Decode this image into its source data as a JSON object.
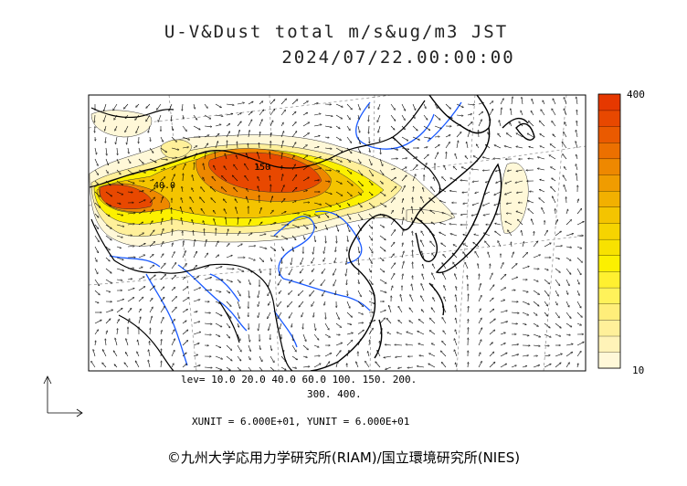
{
  "title": {
    "line1": "U-V&Dust total m/s&ug/m3 JST",
    "line2": "2024/07/22.00:00:00"
  },
  "colorbar": {
    "max_label": "400",
    "min_label": "10",
    "colors": [
      "#fff8d8",
      "#fff3b8",
      "#fff09a",
      "#ffee7a",
      "#fff25a",
      "#fff030",
      "#fcf000",
      "#f8e200",
      "#f6d400",
      "#f4c400",
      "#f2b000",
      "#f09c00",
      "#ee8800",
      "#ec7000",
      "#ea5a00",
      "#e84800",
      "#e63800"
    ]
  },
  "contour_labels": [
    "40.0",
    "150"
  ],
  "legend": {
    "levels_line1": "lev= 10.0 20.0 40.0 60.0 100. 150. 200.",
    "levels_line2": "300. 400.",
    "units": "XUNIT = 6.000E+01, YUNIT = 6.000E+01"
  },
  "copyright": "©九州大学応用力学研究所(RIAM)/国立環境研究所(NIES)",
  "colors": {
    "coast": "#000000",
    "river": "#1a5aff",
    "dust_low": "#fff6c0",
    "dust_mid": "#f2c200",
    "dust_high": "#e84800"
  }
}
